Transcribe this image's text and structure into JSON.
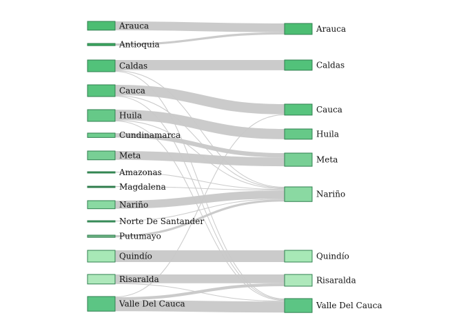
{
  "diagram": {
    "type": "sankey",
    "source_nodes": [
      {
        "id": "s_arauca",
        "label": "Arauca",
        "color": "#4cbd72"
      },
      {
        "id": "s_antioquia",
        "label": "Antioquia",
        "color": "#3aa85e"
      },
      {
        "id": "s_caldas",
        "label": "Caldas",
        "color": "#52c27a"
      },
      {
        "id": "s_cauca",
        "label": "Cauca",
        "color": "#58c47e"
      },
      {
        "id": "s_huila",
        "label": "Huila",
        "color": "#66c988"
      },
      {
        "id": "s_cundinamarca",
        "label": "Cundinamarca",
        "color": "#6fcd8e"
      },
      {
        "id": "s_meta",
        "label": "Meta",
        "color": "#78cf95"
      },
      {
        "id": "s_amazonas",
        "label": "Amazonas",
        "color": "#3a8f56"
      },
      {
        "id": "s_magdalena",
        "label": "Magdalena",
        "color": "#2f7a47"
      },
      {
        "id": "s_narino",
        "label": "Nariño",
        "color": "#8ad9a2"
      },
      {
        "id": "s_nds",
        "label": "Norte De Santander",
        "color": "#3f9a60"
      },
      {
        "id": "s_putumayo",
        "label": "Putumayo",
        "color": "#6fb585"
      },
      {
        "id": "s_quindio",
        "label": "Quindío",
        "color": "#a7e8b6"
      },
      {
        "id": "s_risaralda",
        "label": "Risaralda",
        "color": "#aee8bb"
      },
      {
        "id": "s_valle",
        "label": "Valle Del Cauca",
        "color": "#5cc584"
      }
    ],
    "target_nodes": [
      {
        "id": "t_arauca",
        "label": "Arauca",
        "color": "#4cbd72"
      },
      {
        "id": "t_caldas",
        "label": "Caldas",
        "color": "#52c27a"
      },
      {
        "id": "t_cauca",
        "label": "Cauca",
        "color": "#58c47e"
      },
      {
        "id": "t_huila",
        "label": "Huila",
        "color": "#66c988"
      },
      {
        "id": "t_meta",
        "label": "Meta",
        "color": "#78cf95"
      },
      {
        "id": "t_narino",
        "label": "Nariño",
        "color": "#8ad9a2"
      },
      {
        "id": "t_quindio",
        "label": "Quindío",
        "color": "#a7e8b6"
      },
      {
        "id": "t_risaralda",
        "label": "Risaralda",
        "color": "#aee8bb"
      },
      {
        "id": "t_valle",
        "label": "Valle Del Cauca",
        "color": "#5cc584"
      }
    ],
    "links": [
      {
        "source": "s_arauca",
        "target": "t_arauca",
        "value": 12
      },
      {
        "source": "s_antioquia",
        "target": "t_arauca",
        "value": 3
      },
      {
        "source": "s_caldas",
        "target": "t_caldas",
        "value": 14
      },
      {
        "source": "s_caldas",
        "target": "t_narino",
        "value": 1
      },
      {
        "source": "s_caldas",
        "target": "t_valle",
        "value": 1
      },
      {
        "source": "s_cauca",
        "target": "t_cauca",
        "value": 14
      },
      {
        "source": "s_cauca",
        "target": "t_narino",
        "value": 1
      },
      {
        "source": "s_cauca",
        "target": "t_valle",
        "value": 1
      },
      {
        "source": "s_huila",
        "target": "t_huila",
        "value": 14
      },
      {
        "source": "s_huila",
        "target": "t_narino",
        "value": 1
      },
      {
        "source": "s_huila",
        "target": "t_valle",
        "value": 1
      },
      {
        "source": "s_cundinamarca",
        "target": "t_meta",
        "value": 6
      },
      {
        "source": "s_meta",
        "target": "t_meta",
        "value": 12
      },
      {
        "source": "s_amazonas",
        "target": "t_narino",
        "value": 1
      },
      {
        "source": "s_magdalena",
        "target": "t_narino",
        "value": 1
      },
      {
        "source": "s_narino",
        "target": "t_narino",
        "value": 11
      },
      {
        "source": "s_nds",
        "target": "t_narino",
        "value": 1
      },
      {
        "source": "s_putumayo",
        "target": "t_narino",
        "value": 3
      },
      {
        "source": "s_quindio",
        "target": "t_quindio",
        "value": 16
      },
      {
        "source": "s_risaralda",
        "target": "t_risaralda",
        "value": 12
      },
      {
        "source": "s_risaralda",
        "target": "t_valle",
        "value": 1
      },
      {
        "source": "s_valle",
        "target": "t_valle",
        "value": 15
      },
      {
        "source": "s_valle",
        "target": "t_risaralda",
        "value": 4
      },
      {
        "source": "s_valle",
        "target": "t_cauca",
        "value": 1
      }
    ]
  }
}
